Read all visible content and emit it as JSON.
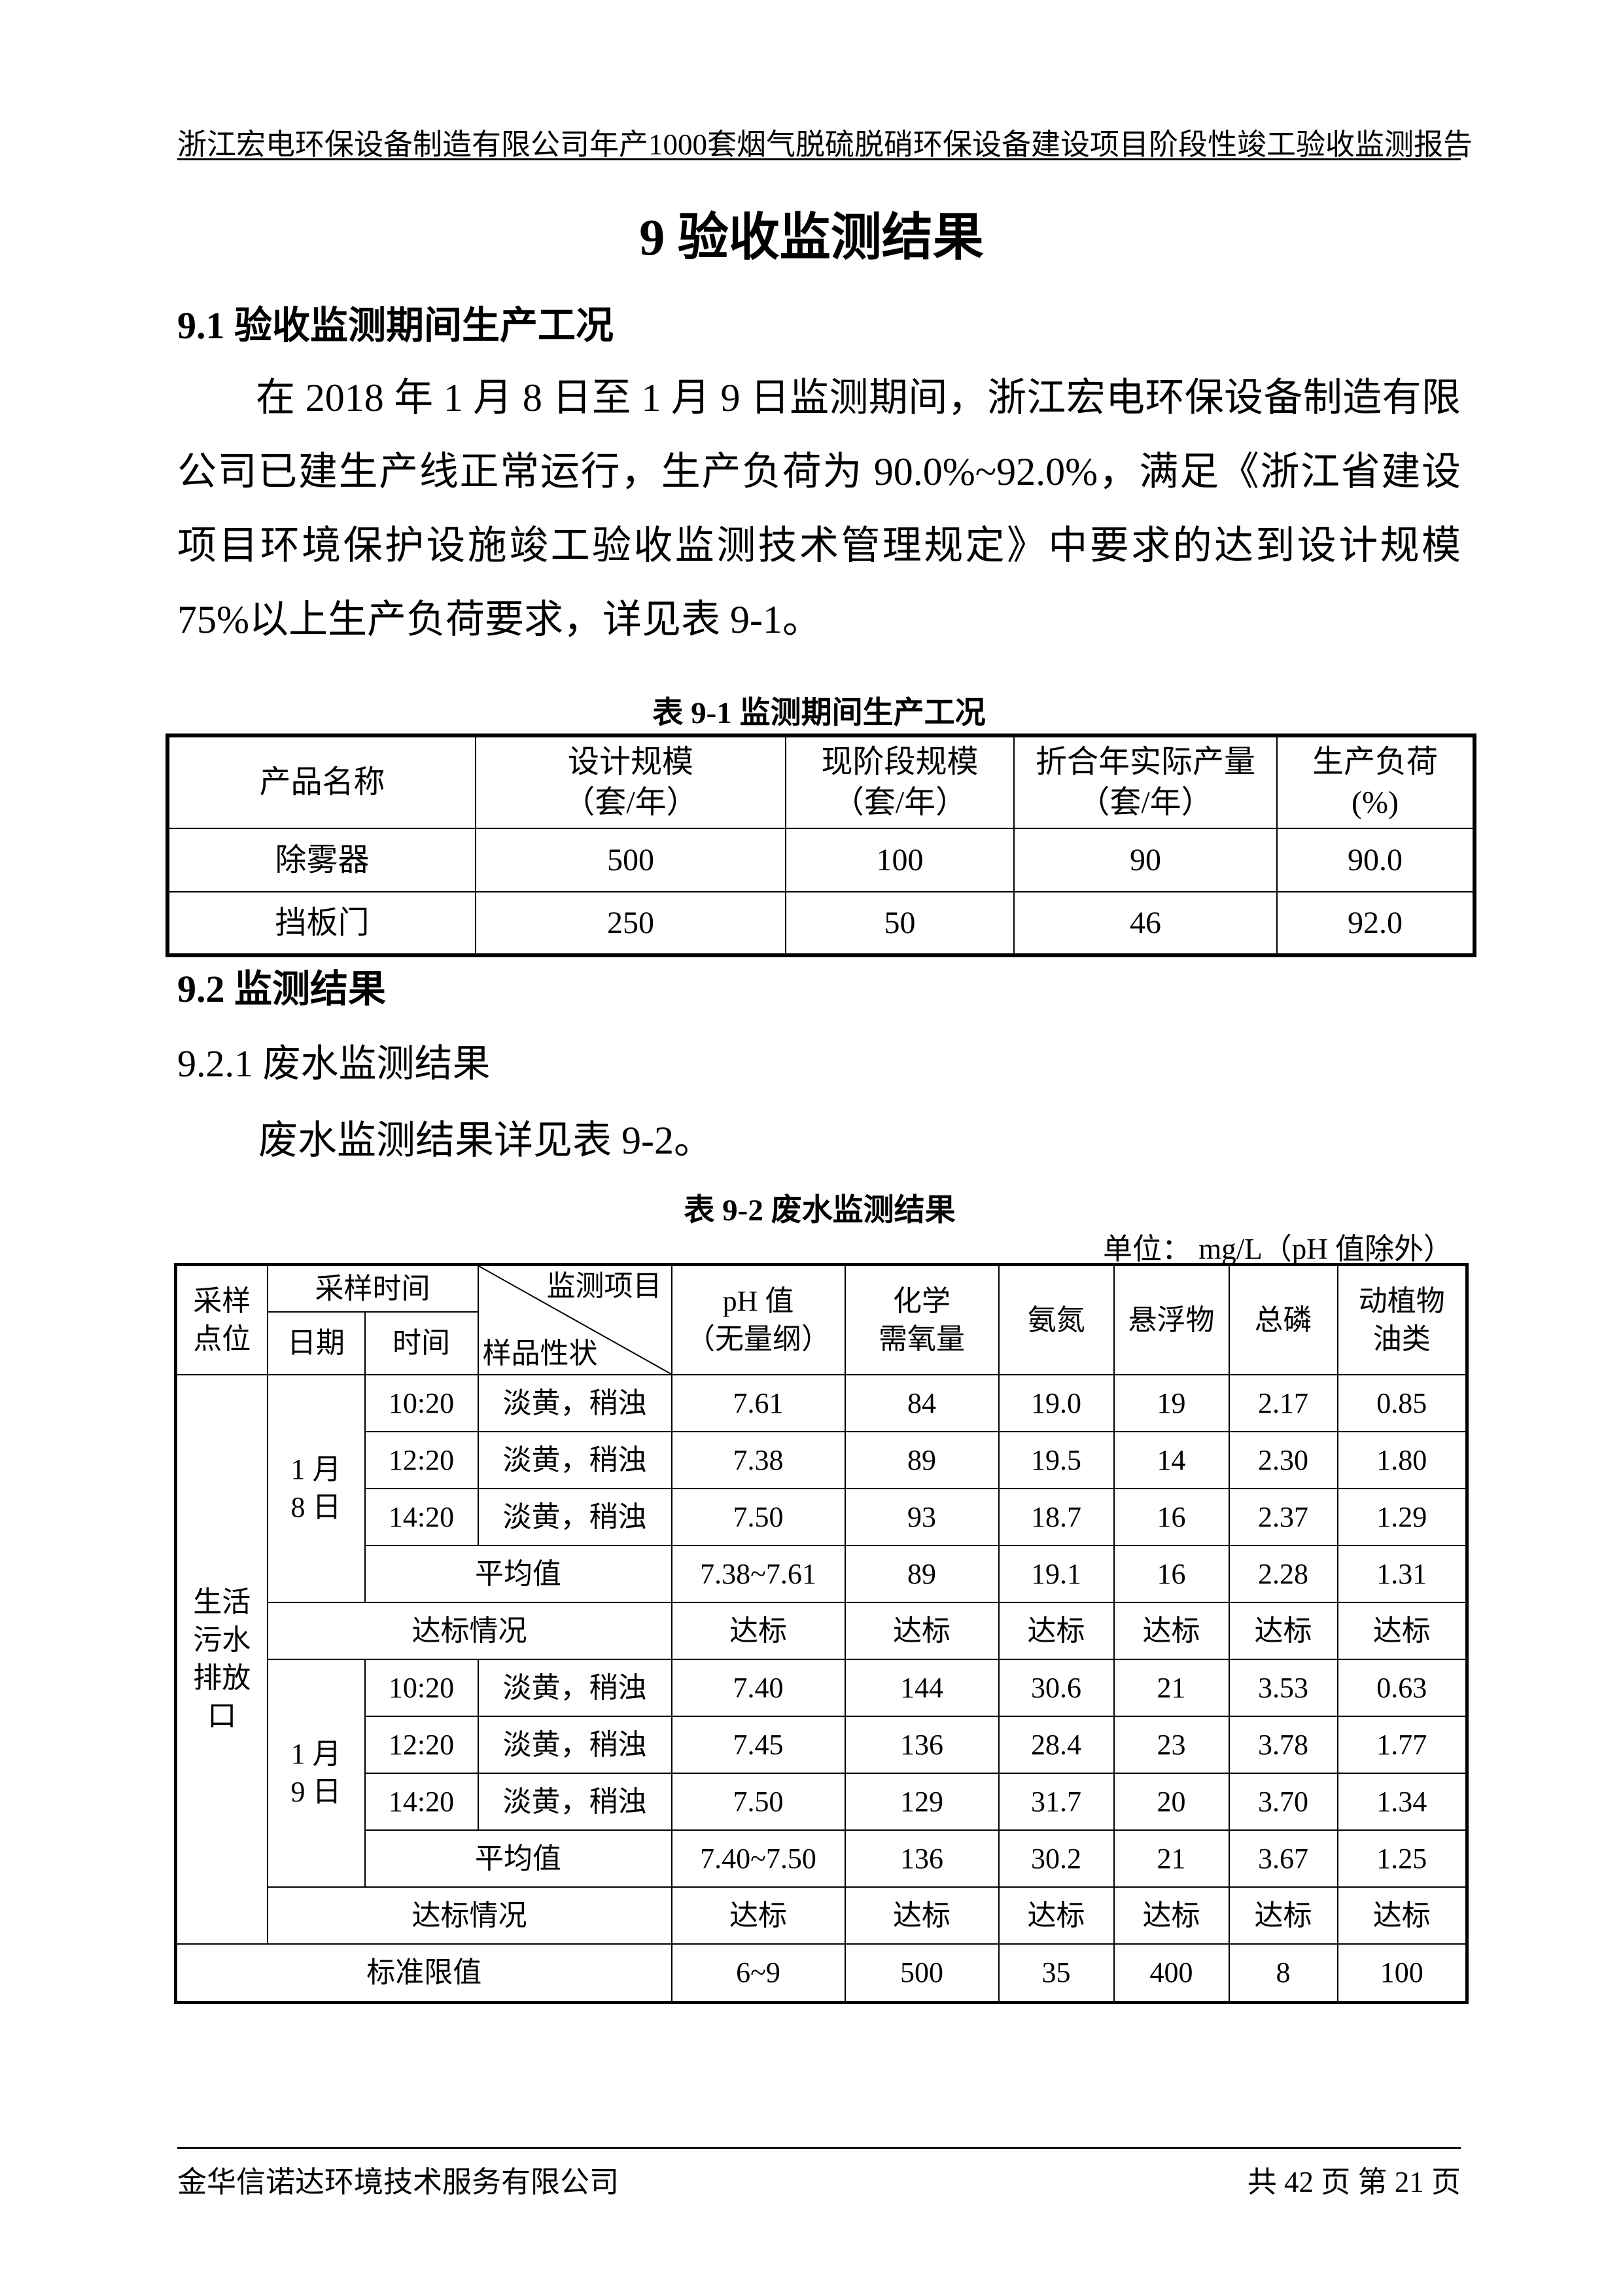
{
  "header": {
    "running_title": "浙江宏电环保设备制造有限公司年产1000套烟气脱硫脱硝环保设备建设项目阶段性竣工验收监测报告"
  },
  "chapter_title": "9 验收监测结果",
  "section_9_1": {
    "heading": "9.1 验收监测期间生产工况",
    "paragraph": "在 2018 年 1 月 8 日至 1 月 9 日监测期间，浙江宏电环保设备制造有限公司已建生产线正常运行，生产负荷为 90.0%~92.0%，满足《浙江省建设项目环境保护设施竣工验收监测技术管理规定》中要求的达到设计规模 75%以上生产负荷要求，详见表 9-1。"
  },
  "table1": {
    "caption": "表 9-1  监测期间生产工况",
    "headers": [
      {
        "line1": "产品名称",
        "line2": ""
      },
      {
        "line1": "设计规模",
        "line2": "（套/年）"
      },
      {
        "line1": "现阶段规模",
        "line2": "（套/年）"
      },
      {
        "line1": "折合年实际产量",
        "line2": "（套/年）"
      },
      {
        "line1": "生产负荷",
        "line2": "(%)"
      }
    ],
    "rows": [
      [
        "除雾器",
        "500",
        "100",
        "90",
        "90.0"
      ],
      [
        "挡板门",
        "250",
        "50",
        "46",
        "92.0"
      ]
    ]
  },
  "section_9_2": {
    "heading": "9.2  监测结果",
    "sub_heading": "9.2.1 废水监测结果",
    "paragraph": "废水监测结果详见表 9-2。"
  },
  "table2": {
    "caption": "表 9-2    废水监测结果",
    "unit": "单位：  mg/L（pH 值除外）",
    "headers": {
      "site": "采样点位",
      "sampling_time": "采样时间",
      "date": "日期",
      "time": "时间",
      "diag_top": "监测项目",
      "diag_bottom": "样品性状",
      "items": [
        "pH 值\n（无量纲）",
        "化学\n需氧量",
        "氨氮",
        "悬浮物",
        "总磷",
        "动植物\n油类"
      ]
    },
    "site": "生活污水排放口",
    "days": [
      {
        "date": "1 月\n8 日",
        "samples": [
          {
            "time": "10:20",
            "appearance": "淡黄，稍浊",
            "values": [
              "7.61",
              "84",
              "19.0",
              "19",
              "2.17",
              "0.85"
            ]
          },
          {
            "time": "12:20",
            "appearance": "淡黄，稍浊",
            "values": [
              "7.38",
              "89",
              "19.5",
              "14",
              "2.30",
              "1.80"
            ]
          },
          {
            "time": "14:20",
            "appearance": "淡黄，稍浊",
            "values": [
              "7.50",
              "93",
              "18.7",
              "16",
              "2.37",
              "1.29"
            ]
          }
        ],
        "average": {
          "label": "平均值",
          "values": [
            "7.38~7.61",
            "89",
            "19.1",
            "16",
            "2.28",
            "1.31"
          ]
        },
        "compliance": {
          "label": "达标情况",
          "values": [
            "达标",
            "达标",
            "达标",
            "达标",
            "达标",
            "达标"
          ]
        }
      },
      {
        "date": "1 月\n9 日",
        "samples": [
          {
            "time": "10:20",
            "appearance": "淡黄，稍浊",
            "values": [
              "7.40",
              "144",
              "30.6",
              "21",
              "3.53",
              "0.63"
            ]
          },
          {
            "time": "12:20",
            "appearance": "淡黄，稍浊",
            "values": [
              "7.45",
              "136",
              "28.4",
              "23",
              "3.78",
              "1.77"
            ]
          },
          {
            "time": "14:20",
            "appearance": "淡黄，稍浊",
            "values": [
              "7.50",
              "129",
              "31.7",
              "20",
              "3.70",
              "1.34"
            ]
          }
        ],
        "average": {
          "label": "平均值",
          "values": [
            "7.40~7.50",
            "136",
            "30.2",
            "21",
            "3.67",
            "1.25"
          ]
        },
        "compliance": {
          "label": "达标情况",
          "values": [
            "达标",
            "达标",
            "达标",
            "达标",
            "达标",
            "达标"
          ]
        }
      }
    ],
    "standard": {
      "label": "标准限值",
      "values": [
        "6~9",
        "500",
        "35",
        "400",
        "8",
        "100"
      ]
    }
  },
  "footer": {
    "company": "金华信诺达环境技术服务有限公司",
    "page_info": "共 42 页   第 21 页"
  }
}
